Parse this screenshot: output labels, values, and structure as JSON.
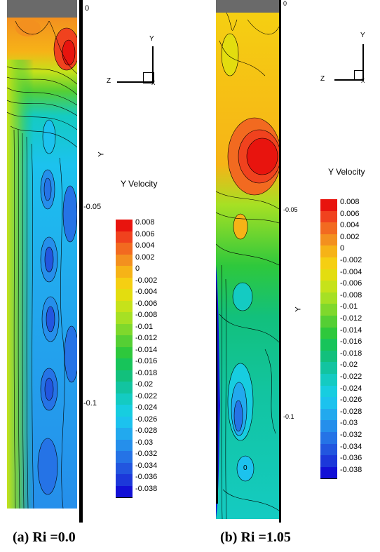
{
  "panels": [
    {
      "caption": "(a) Ri =0.0",
      "axis_ticks": [
        "0",
        "-0.05",
        "-0.1"
      ],
      "axis_label": "Y",
      "legend_title": "Y Velocity",
      "triad": {
        "y": "Y",
        "z": "Z",
        "x": "X"
      }
    },
    {
      "caption": "(b) Ri =1.05",
      "axis_ticks": [
        "0",
        "-0.05",
        "-0.1"
      ],
      "axis_label": "Y",
      "legend_title": "Y Velocity",
      "triad": {
        "y": "Y",
        "z": "Z",
        "x": "X"
      },
      "contour_label": "0"
    }
  ],
  "legend_levels": [
    "0.008",
    "0.006",
    "0.004",
    "0.002",
    "0",
    "-0.002",
    "-0.004",
    "-0.006",
    "-0.008",
    "-0.01",
    "-0.012",
    "-0.014",
    "-0.016",
    "-0.018",
    "-0.02",
    "-0.022",
    "-0.024",
    "-0.026",
    "-0.028",
    "-0.03",
    "-0.032",
    "-0.034",
    "-0.036",
    "-0.038"
  ],
  "legend_colors": [
    "#e8140e",
    "#f0421e",
    "#f26a20",
    "#f3901f",
    "#f6b317",
    "#f5cf12",
    "#e3dd0f",
    "#c6e21a",
    "#a6e024",
    "#7fd82c",
    "#55cf34",
    "#2ec83c",
    "#17c45a",
    "#12c07c",
    "#12c4a0",
    "#14cbc2",
    "#17cde0",
    "#1cc2ee",
    "#22a9ee",
    "#258feb",
    "#2573e6",
    "#2256df",
    "#1c38da",
    "#1210d6"
  ],
  "topbar_color": "#6a6a6a"
}
